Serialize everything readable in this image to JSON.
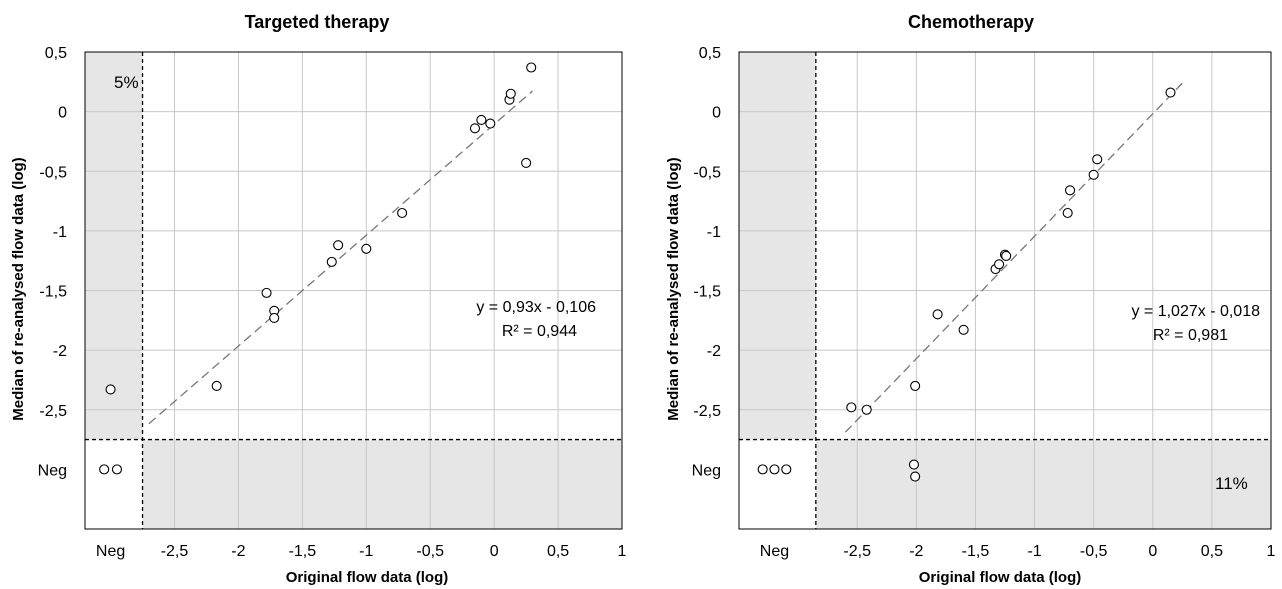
{
  "chart_data": [
    {
      "type": "scatter",
      "title": "Targeted therapy",
      "xlabel": "Original flow data (log)",
      "ylabel": "Median of re-analysed flow data (log)",
      "xlim": [
        -3.2,
        1
      ],
      "ylim": [
        -3.5,
        0.5
      ],
      "x_ticks": [
        "Neg",
        "-2,5",
        "-2",
        "-1,5",
        "-1",
        "-0,5",
        "0",
        "0,5",
        "1"
      ],
      "y_ticks": [
        "0,5",
        "0",
        "-0,5",
        "-1",
        "-1,5",
        "-2",
        "-2,5",
        "Neg"
      ],
      "grid": true,
      "neg_category_position": -3.0,
      "threshold": {
        "x": -2.75,
        "y": -2.75
      },
      "shaded_regions": [
        "top-left",
        "bottom-right"
      ],
      "region_label": "5%",
      "region_label_corner": "top-left",
      "trendline": {
        "slope": 0.93,
        "intercept": -0.106,
        "x_range": [
          -2.7,
          0.3
        ]
      },
      "equation": "y = 0,93x - 0,106",
      "r_squared": "R² = 0,944",
      "points": [
        {
          "x": -3.0,
          "y": -2.33
        },
        {
          "x": -3.05,
          "y": -3.0
        },
        {
          "x": -2.95,
          "y": -3.0
        },
        {
          "x": -2.17,
          "y": -2.3
        },
        {
          "x": -1.78,
          "y": -1.52
        },
        {
          "x": -1.72,
          "y": -1.67
        },
        {
          "x": -1.72,
          "y": -1.73
        },
        {
          "x": -1.27,
          "y": -1.26
        },
        {
          "x": -1.22,
          "y": -1.12
        },
        {
          "x": -1.0,
          "y": -1.15
        },
        {
          "x": -0.72,
          "y": -0.85
        },
        {
          "x": -0.15,
          "y": -0.14
        },
        {
          "x": -0.1,
          "y": -0.07
        },
        {
          "x": -0.03,
          "y": -0.1
        },
        {
          "x": 0.12,
          "y": 0.1
        },
        {
          "x": 0.13,
          "y": 0.15
        },
        {
          "x": 0.25,
          "y": -0.43
        },
        {
          "x": 0.29,
          "y": 0.37
        }
      ]
    },
    {
      "type": "scatter",
      "title": "Chemotherapy",
      "xlabel": "Original flow data (log)",
      "ylabel": "Median of re-analysed flow data (log)",
      "xlim": [
        -3.5,
        1
      ],
      "ylim": [
        -3.5,
        0.5
      ],
      "x_ticks": [
        "Neg",
        "-2,5",
        "-2",
        "-1,5",
        "-1",
        "-0,5",
        "0",
        "0,5",
        "1"
      ],
      "y_ticks": [
        "0,5",
        "0",
        "-0,5",
        "-1",
        "-1,5",
        "-2",
        "-2,5",
        "Neg"
      ],
      "grid": true,
      "neg_category_position": -3.2,
      "threshold": {
        "x": -2.85,
        "y": -2.75
      },
      "shaded_regions": [
        "top-left",
        "bottom-right"
      ],
      "region_label": "11%",
      "region_label_corner": "bottom-right",
      "trendline": {
        "slope": 1.027,
        "intercept": -0.018,
        "x_range": [
          -2.6,
          0.25
        ]
      },
      "equation": "y = 1,027x - 0,018",
      "r_squared": "R² = 0,981",
      "points": [
        {
          "x": -3.3,
          "y": -3.0
        },
        {
          "x": -3.2,
          "y": -3.0
        },
        {
          "x": -3.1,
          "y": -3.0
        },
        {
          "x": -2.55,
          "y": -2.48
        },
        {
          "x": -2.42,
          "y": -2.5
        },
        {
          "x": -2.02,
          "y": -2.96
        },
        {
          "x": -2.01,
          "y": -3.06
        },
        {
          "x": -2.01,
          "y": -2.3
        },
        {
          "x": -1.82,
          "y": -1.7
        },
        {
          "x": -1.6,
          "y": -1.83
        },
        {
          "x": -1.33,
          "y": -1.32
        },
        {
          "x": -1.3,
          "y": -1.28
        },
        {
          "x": -1.25,
          "y": -1.2
        },
        {
          "x": -1.24,
          "y": -1.21
        },
        {
          "x": -0.72,
          "y": -0.85
        },
        {
          "x": -0.7,
          "y": -0.66
        },
        {
          "x": -0.5,
          "y": -0.53
        },
        {
          "x": -0.47,
          "y": -0.4
        },
        {
          "x": 0.15,
          "y": 0.16
        }
      ]
    }
  ]
}
